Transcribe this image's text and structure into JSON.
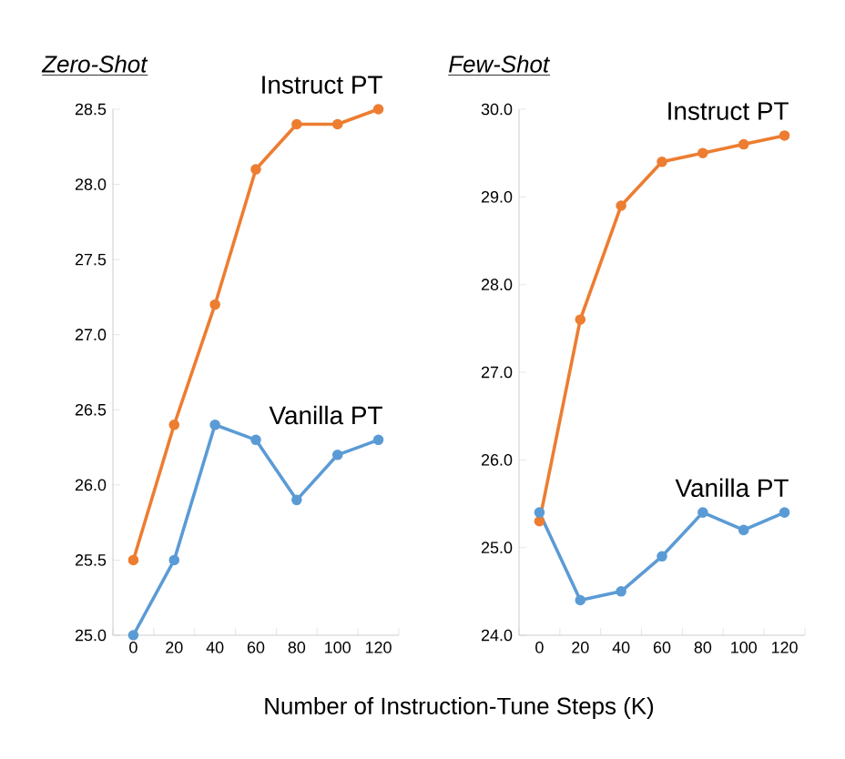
{
  "chart_data": [
    {
      "type": "line",
      "title": "*Zero-Shot*",
      "xlabel": "Number of Instruction-Tune Steps (K)",
      "categories": [
        "0",
        "20",
        "40",
        "60",
        "80",
        "100",
        "120"
      ],
      "marker": "circle",
      "ylim": [
        25.0,
        28.5
      ],
      "yticks": [
        {
          "value": 25.0,
          "label": "25.0"
        },
        {
          "value": 25.5,
          "label": "25.5"
        },
        {
          "value": 26.0,
          "label": "26.0"
        },
        {
          "value": 26.5,
          "label": "26.5"
        },
        {
          "value": 27.0,
          "label": "27.0"
        },
        {
          "value": 27.5,
          "label": "27.5"
        },
        {
          "value": 28.0,
          "label": "28.0"
        },
        {
          "value": 28.5,
          "label": "28.5"
        }
      ],
      "series": [
        {
          "name": "Instruct PT",
          "color": "#ed7d31",
          "values": [
            25.5,
            26.4,
            27.2,
            28.1,
            28.4,
            28.4,
            28.5
          ]
        },
        {
          "name": "Vanilla PT",
          "color": "#5b9bd5",
          "values": [
            25.0,
            25.5,
            26.4,
            26.3,
            25.9,
            26.2,
            26.3
          ]
        }
      ]
    },
    {
      "type": "line",
      "title": "*Few-Shot*",
      "categories": [
        "0",
        "20",
        "40",
        "60",
        "80",
        "100",
        "120"
      ],
      "marker": "circle",
      "ylim": [
        24.0,
        30.0
      ],
      "yticks": [
        {
          "value": 24.0,
          "label": "24.0"
        },
        {
          "value": 25.0,
          "label": "25.0"
        },
        {
          "value": 26.0,
          "label": "26.0"
        },
        {
          "value": 27.0,
          "label": "27.0"
        },
        {
          "value": 28.0,
          "label": "28.0"
        },
        {
          "value": 29.0,
          "label": "29.0"
        },
        {
          "value": 30.0,
          "label": "30.0"
        }
      ],
      "series": [
        {
          "name": "Instruct PT",
          "color": "#ed7d31",
          "values": [
            25.3,
            27.6,
            28.9,
            29.4,
            29.5,
            29.6,
            29.7
          ]
        },
        {
          "name": "Vanilla PT",
          "color": "#5b9bd5",
          "values": [
            25.4,
            24.4,
            24.5,
            24.9,
            25.4,
            25.2,
            25.4
          ]
        }
      ]
    }
  ]
}
